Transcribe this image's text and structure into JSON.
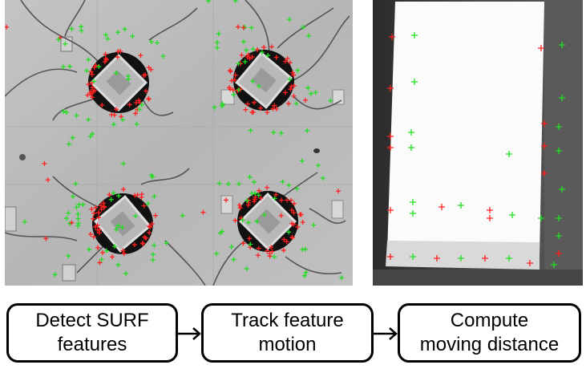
{
  "steps": [
    {
      "line1": "Detect SURF",
      "line2": "features"
    },
    {
      "line1": "Track feature",
      "line2": "motion"
    },
    {
      "line1": "Compute",
      "line2": "moving distance"
    }
  ],
  "colors": {
    "feature_red": "#ff2020",
    "feature_green": "#22dd22",
    "box_border": "#000000",
    "photo_left_bg": "#bdbdbd",
    "photo_right_frame": "#3a3a3a"
  },
  "icons": [
    "arrow-right-icon"
  ]
}
